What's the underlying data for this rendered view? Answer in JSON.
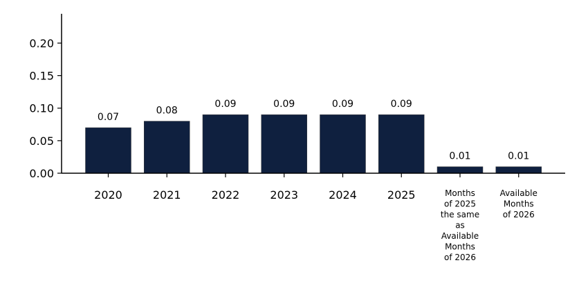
{
  "chart_data": {
    "type": "bar",
    "title": "",
    "xlabel": "",
    "ylabel": "",
    "categories": [
      "2020",
      "2021",
      "2022",
      "2023",
      "2024",
      "2025",
      "Months\nof 2025\nthe same\nas\nAvailable\nMonths\nof 2026",
      "Available\nMonths\nof 2026"
    ],
    "values": [
      0.07,
      0.08,
      0.09,
      0.09,
      0.09,
      0.09,
      0.01,
      0.01
    ],
    "data_labels": [
      "0.07",
      "0.08",
      "0.09",
      "0.09",
      "0.09",
      "0.09",
      "0.01",
      "0.01"
    ],
    "ylim": [
      0,
      0.245
    ],
    "yticks": [
      "0.00",
      "0.05",
      "0.10",
      "0.15",
      "0.20"
    ],
    "bar_color": "#0f203f",
    "grid": false,
    "legend": "none"
  }
}
